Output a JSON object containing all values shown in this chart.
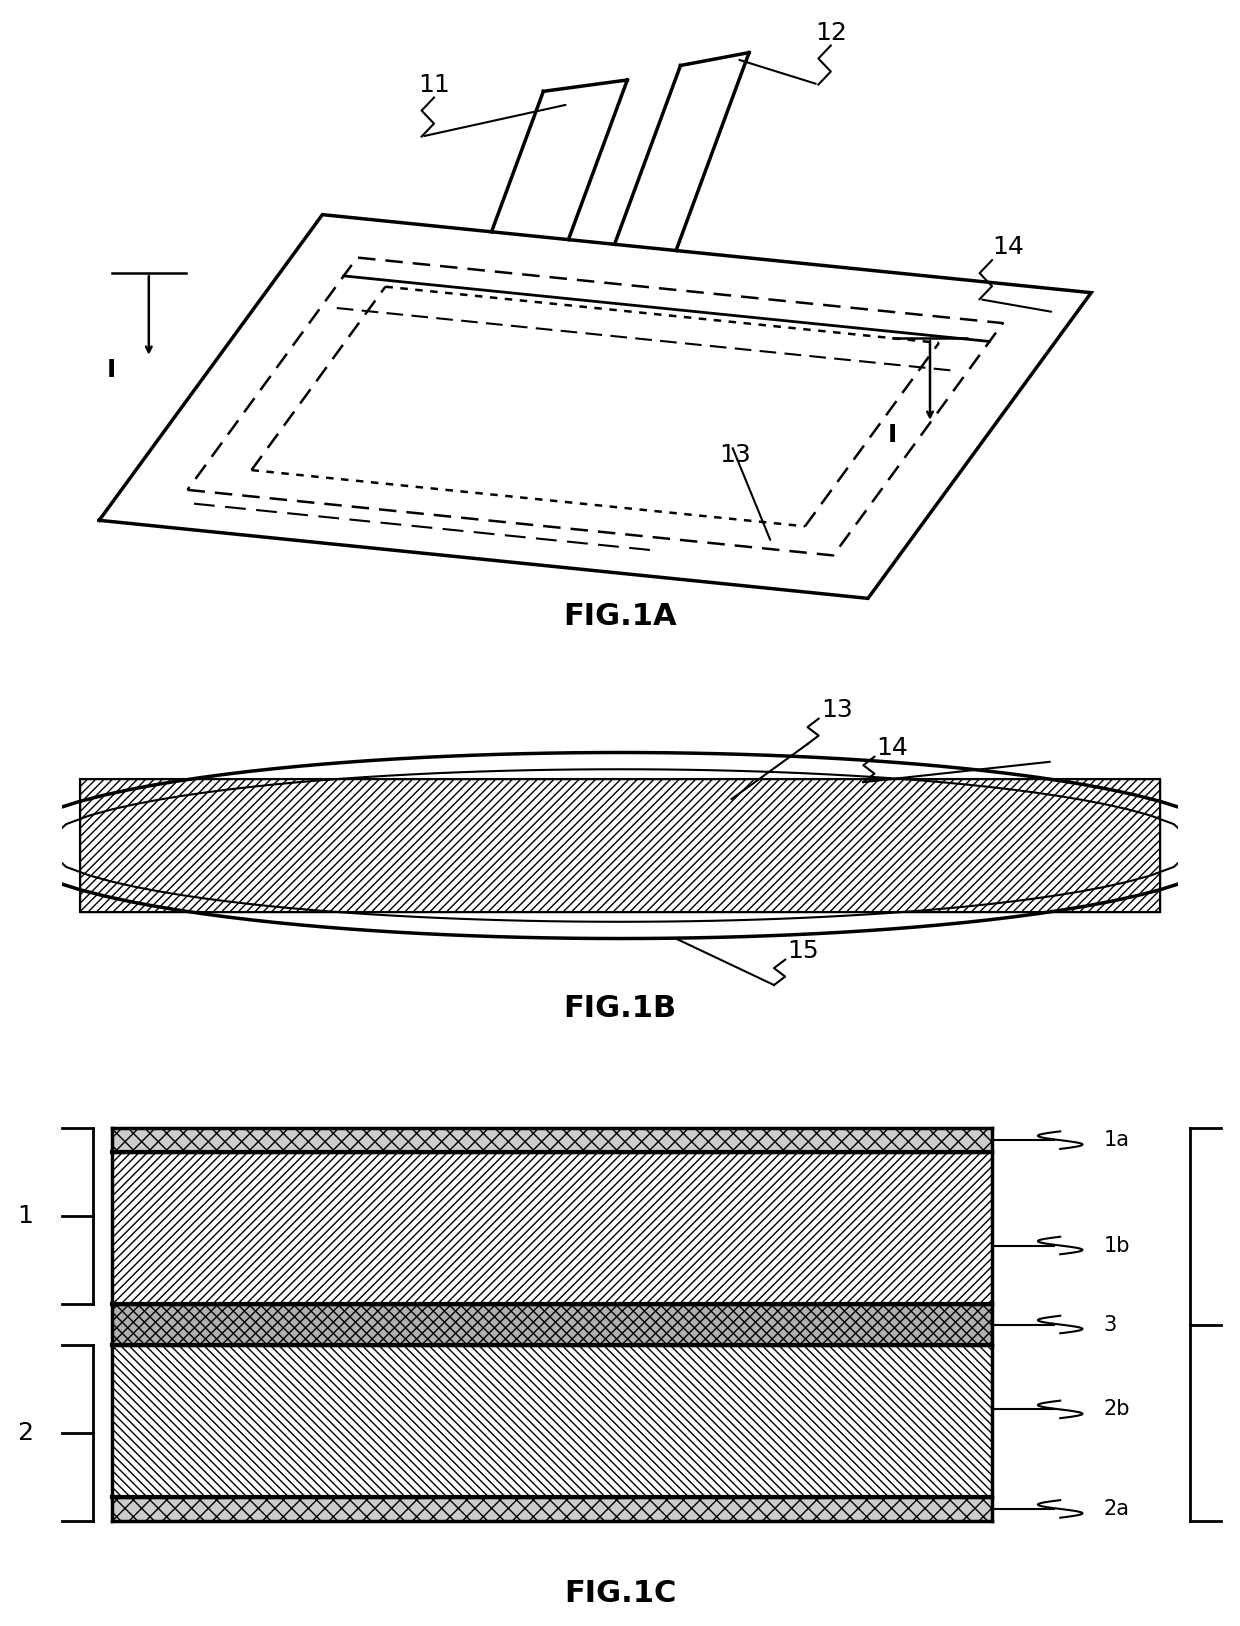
{
  "bg_color": "#ffffff",
  "line_color": "#000000",
  "fig_width": 12.4,
  "fig_height": 16.26,
  "fig1a_label": "FIG.1A",
  "fig1b_label": "FIG.1B",
  "fig1c_label": "FIG.1C"
}
